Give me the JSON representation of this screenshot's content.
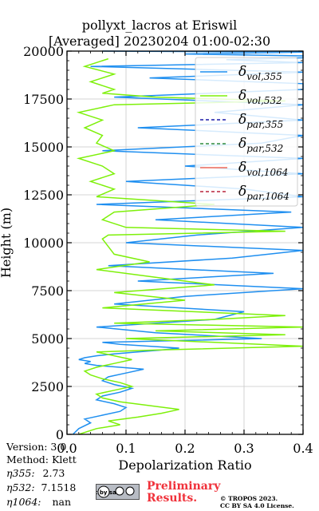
{
  "chart_data": {
    "type": "line",
    "title_line1": "pollyxt_lacros at Eriswil",
    "title_line2": "[Averaged] 20230204 01:00-02:30",
    "xlabel": "Depolarization Ratio",
    "ylabel": "Height (m)",
    "xlim": [
      0,
      0.4
    ],
    "ylim": [
      0,
      20000
    ],
    "xticks": [
      "0.0",
      "0.1",
      "0.2",
      "0.3",
      "0.4"
    ],
    "yticks": [
      "0",
      "2500",
      "5000",
      "7500",
      "10000",
      "12500",
      "15000",
      "17500",
      "20000"
    ],
    "grid": true,
    "legend_position": "top-right",
    "series": [
      {
        "name": "δvol,355",
        "legend_main": "δ",
        "legend_sub": "vol,355",
        "color": "#1f8ff0",
        "style": "solid",
        "x": [
          0.01,
          0.02,
          0.04,
          0.03,
          0.06,
          0.09,
          0.1,
          0.08,
          0.05,
          0.06,
          0.09,
          0.11,
          0.08,
          0.06,
          0.07,
          0.1,
          0.13,
          0.09,
          0.05,
          0.03,
          0.04,
          0.02,
          0.03,
          0.05,
          0.08,
          0.12,
          0.16,
          0.19,
          0.14,
          0.09,
          0.06,
          0.2,
          0.33,
          0.15,
          0.05,
          0.25,
          0.3,
          0.08,
          0.2,
          0.4,
          0.12,
          0.35,
          0.07,
          0.28,
          0.4,
          0.1,
          0.22,
          0.4,
          0.15,
          0.38,
          0.05,
          0.4,
          0.3,
          0.1,
          0.4,
          0.2,
          0.4,
          0.06,
          0.33,
          0.4,
          0.12,
          0.4,
          0.25,
          0.4,
          0.08,
          0.4,
          0.4,
          0.14,
          0.4,
          0.04,
          0.4,
          0.27,
          0.4,
          0.4,
          0.2,
          0.4,
          0.06
        ],
        "y": [
          0,
          300,
          600,
          800,
          1000,
          1200,
          1400,
          1600,
          1800,
          2000,
          2200,
          2400,
          2600,
          2800,
          3000,
          3200,
          3400,
          3500,
          3600,
          3700,
          3800,
          3900,
          4000,
          4100,
          4200,
          4300,
          4400,
          4500,
          4600,
          4700,
          4800,
          4900,
          5000,
          5300,
          5600,
          6000,
          6400,
          6800,
          7200,
          7600,
          8000,
          8400,
          8800,
          9200,
          9600,
          10000,
          10400,
          10800,
          11200,
          11600,
          12000,
          12400,
          12800,
          13200,
          13600,
          14000,
          14400,
          14800,
          15200,
          15600,
          16000,
          16400,
          16800,
          17200,
          17600,
          18000,
          18300,
          18600,
          18900,
          19200,
          19400,
          19550,
          19650,
          19750,
          19850,
          19950,
          20000
        ]
      },
      {
        "name": "δvol,532",
        "legend_main": "δ",
        "legend_sub": "vol,532",
        "color": "#7ef00a",
        "style": "solid",
        "x": [
          0.02,
          0.05,
          0.09,
          0.07,
          0.12,
          0.16,
          0.19,
          0.14,
          0.09,
          0.06,
          0.05,
          0.08,
          0.11,
          0.09,
          0.06,
          0.04,
          0.03,
          0.05,
          0.08,
          0.11,
          0.08,
          0.05,
          0.15,
          0.4,
          0.25,
          0.1,
          0.37,
          0.15,
          0.4,
          0.08,
          0.25,
          0.37,
          0.06,
          0.2,
          0.08,
          0.25,
          0.15,
          0.05,
          0.14,
          0.08,
          0.07,
          0.06,
          0.07,
          0.37,
          0.1,
          0.06,
          0.08,
          0.25,
          0.05,
          0.08,
          0.04,
          0.08,
          0.06,
          0.02,
          0.08,
          0.05,
          0.06,
          0.03,
          0.06,
          0.02,
          0.08,
          0.37,
          0.15,
          0.06,
          0.08,
          0.04,
          0.08,
          0.03,
          0.07
        ],
        "y": [
          0,
          300,
          500,
          700,
          900,
          1100,
          1300,
          1500,
          1700,
          1900,
          2100,
          2300,
          2500,
          2700,
          2900,
          3100,
          3300,
          3500,
          3700,
          3900,
          4100,
          4300,
          4400,
          4600,
          4800,
          5000,
          5200,
          5400,
          5600,
          5800,
          6000,
          6200,
          6600,
          7000,
          7400,
          7800,
          8200,
          8600,
          9000,
          9400,
          9800,
          10200,
          10400,
          10600,
          10800,
          11200,
          11600,
          12000,
          12400,
          12800,
          13200,
          13600,
          14000,
          14400,
          14800,
          15200,
          15600,
          16000,
          16400,
          16800,
          17200,
          17400,
          17600,
          17800,
          18000,
          18400,
          18800,
          19200,
          19600
        ]
      },
      {
        "name": "δpar,355",
        "legend_main": "δ",
        "legend_sub": "par,355",
        "color": "#1a1aa8",
        "style": "dashed",
        "x": [],
        "y": []
      },
      {
        "name": "δpar,532",
        "legend_main": "δ",
        "legend_sub": "par,532",
        "color": "#2e8b3e",
        "style": "dashed",
        "x": [],
        "y": []
      },
      {
        "name": "δvol,1064",
        "legend_main": "δ",
        "legend_sub": "vol,1064",
        "color": "#f06a5a",
        "style": "solid",
        "x": [],
        "y": []
      },
      {
        "name": "δpar,1064",
        "legend_main": "δ",
        "legend_sub": "par,1064",
        "color": "#b8243a",
        "style": "dashed",
        "x": [],
        "y": []
      }
    ]
  },
  "info": {
    "version": "Version: 3.0",
    "method": "Method: Klett",
    "eta355_label": "η355:",
    "eta355_value": "2.73",
    "eta532_label": "η532:",
    "eta532_value": "7.1518",
    "eta1064_label": "η1064:",
    "eta1064_value": "nan"
  },
  "footer": {
    "cc_badge": "cc by sa",
    "preliminary_line1": "Preliminary",
    "preliminary_line2": "Results.",
    "copyright_line1": "© TROPOS 2023.",
    "copyright_line2": "CC BY SA 4.0 License."
  }
}
